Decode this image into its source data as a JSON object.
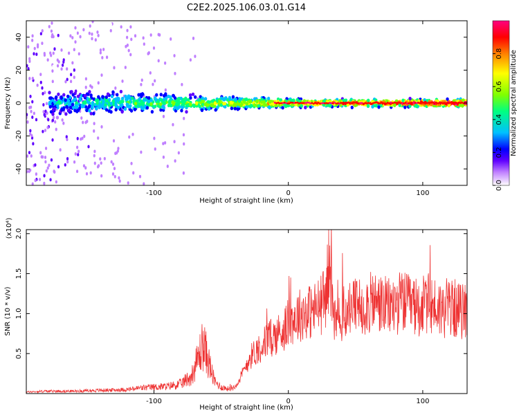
{
  "figure": {
    "title": "C2E2.2025.106.03.01.G14"
  },
  "chart_data": [
    {
      "type": "heatmap",
      "xlabel": "Height of straight line (km)",
      "ylabel": "Frequency (Hz)",
      "xlim": [
        -195,
        133
      ],
      "ylim": [
        -50,
        50
      ],
      "x_ticks": [
        -100,
        0,
        100
      ],
      "x_tick_labels": [
        "-100",
        "0",
        "100"
      ],
      "y_ticks": [
        -40,
        -20,
        0,
        20,
        40
      ],
      "y_tick_labels": [
        "-40",
        "-20",
        "0",
        "20",
        "40"
      ],
      "colorbar": {
        "label": "Normalized spectral amplitude",
        "range": [
          0,
          1
        ],
        "ticks": [
          0.0,
          0.2,
          0.4,
          0.6,
          0.8
        ],
        "tick_labels": [
          "0.0",
          "0.2",
          "0.4",
          "0.6",
          "0.8"
        ],
        "colors": [
          "#ffffff",
          "#c080ff",
          "#6000ff",
          "#0000ff",
          "#00c0ff",
          "#00ff80",
          "#80ff00",
          "#ffff00",
          "#ff8000",
          "#ff0000",
          "#ff0080"
        ]
      },
      "band": {
        "center_freq_hz": 0,
        "x_start": -178,
        "x_end": 133,
        "halfwidth_hz_left": 10,
        "halfwidth_hz_right": 3
      },
      "grid": false
    },
    {
      "type": "line",
      "xlabel": "Height of straight line (km)",
      "ylabel": "SNR (10 * v/v)",
      "y_scale_label": "(x10⁴)",
      "xlim": [
        -195,
        133
      ],
      "ylim": [
        0,
        2.05
      ],
      "x_ticks": [
        -100,
        0,
        100
      ],
      "x_tick_labels": [
        "-100",
        "0",
        "100"
      ],
      "y_ticks": [
        0.5,
        1.0,
        1.5,
        2.0
      ],
      "y_tick_labels": [
        "0.5",
        "1.0",
        "1.5",
        "2.0"
      ],
      "series": [
        {
          "color": "#ee3333",
          "x": [
            -195,
            -180,
            -160,
            -140,
            -120,
            -110,
            -100,
            -90,
            -80,
            -72,
            -67,
            -64,
            -62,
            -59,
            -55,
            -50,
            -45,
            -40,
            -35,
            -32,
            -30,
            -25,
            -20,
            -15,
            -10,
            -5,
            0,
            5,
            10,
            15,
            20,
            25,
            28,
            30,
            32,
            34,
            36,
            40,
            45,
            50,
            55,
            60,
            65,
            70,
            75,
            80,
            85,
            90,
            95,
            100,
            105,
            110,
            115,
            120,
            125,
            130,
            133
          ],
          "y": [
            0.02,
            0.03,
            0.03,
            0.04,
            0.05,
            0.07,
            0.08,
            0.09,
            0.12,
            0.22,
            0.45,
            0.6,
            0.55,
            0.38,
            0.15,
            0.08,
            0.06,
            0.08,
            0.22,
            0.32,
            0.42,
            0.52,
            0.6,
            0.68,
            0.72,
            0.78,
            0.88,
            0.95,
            1.0,
            1.02,
            1.05,
            1.12,
            1.25,
            1.55,
            1.3,
            0.95,
            0.85,
            0.98,
            1.05,
            1.08,
            1.1,
            1.12,
            1.15,
            1.1,
            1.08,
            1.12,
            1.15,
            1.1,
            1.08,
            1.1,
            1.12,
            1.08,
            1.05,
            1.1,
            1.05,
            1.02,
            1.08
          ]
        }
      ],
      "grid": false
    }
  ]
}
